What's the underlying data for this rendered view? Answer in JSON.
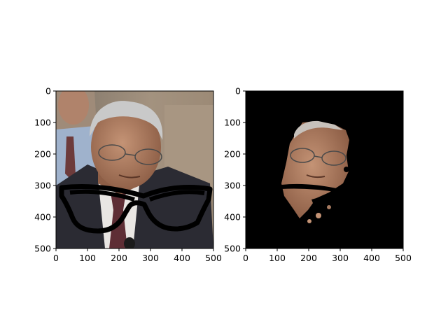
{
  "chart_data": [
    {
      "type": "image",
      "content": "photo",
      "title": "",
      "xlabel": "",
      "ylabel": "",
      "xlim": [
        0,
        500
      ],
      "ylim": [
        500,
        0
      ],
      "x_ticks": [
        "0",
        "100",
        "200",
        "300",
        "400",
        "500"
      ],
      "y_ticks": [
        "0",
        "100",
        "200",
        "300",
        "400",
        "500"
      ],
      "grid": false
    },
    {
      "type": "image",
      "content": "segmentation-mask",
      "title": "",
      "xlabel": "",
      "ylabel": "",
      "xlim": [
        0,
        500
      ],
      "ylim": [
        500,
        0
      ],
      "x_ticks": [
        "0",
        "100",
        "200",
        "300",
        "400",
        "500"
      ],
      "y_ticks": [
        "0",
        "100",
        "200",
        "300",
        "400",
        "500"
      ],
      "grid": false
    }
  ],
  "colors": {
    "mask_background": "#000000",
    "skin": "#b5866b",
    "hair": "#c9c9c9",
    "suit": "#2b2b33",
    "room": "#8a7a6a"
  }
}
